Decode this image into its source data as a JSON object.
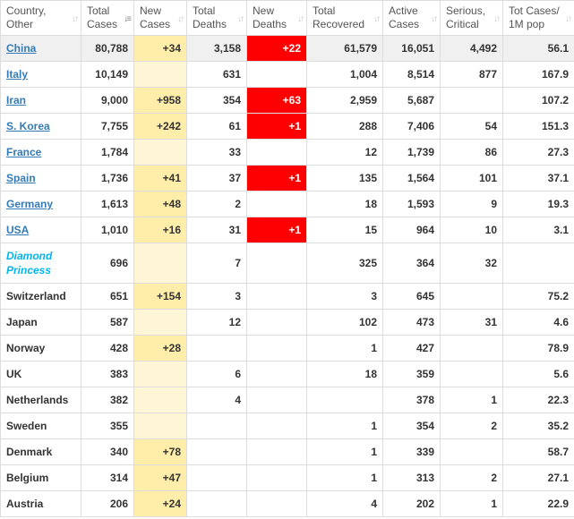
{
  "headers": [
    "Country, Other",
    "Total Cases",
    "New Cases",
    "Total Deaths",
    "New Deaths",
    "Total Recovered",
    "Active Cases",
    "Serious, Critical",
    "Tot Cases/ 1M pop"
  ],
  "rows": [
    {
      "country": "China",
      "link": true,
      "total_cases": "80,788",
      "new_cases": "+34",
      "total_deaths": "3,158",
      "new_deaths": "+22",
      "total_recovered": "61,579",
      "active_cases": "16,051",
      "serious": "4,492",
      "per_million": "56.1"
    },
    {
      "country": "Italy",
      "link": true,
      "total_cases": "10,149",
      "new_cases": "",
      "total_deaths": "631",
      "new_deaths": "",
      "total_recovered": "1,004",
      "active_cases": "8,514",
      "serious": "877",
      "per_million": "167.9"
    },
    {
      "country": "Iran",
      "link": true,
      "total_cases": "9,000",
      "new_cases": "+958",
      "total_deaths": "354",
      "new_deaths": "+63",
      "total_recovered": "2,959",
      "active_cases": "5,687",
      "serious": "",
      "per_million": "107.2"
    },
    {
      "country": "S. Korea",
      "link": true,
      "total_cases": "7,755",
      "new_cases": "+242",
      "total_deaths": "61",
      "new_deaths": "+1",
      "total_recovered": "288",
      "active_cases": "7,406",
      "serious": "54",
      "per_million": "151.3"
    },
    {
      "country": "France",
      "link": true,
      "total_cases": "1,784",
      "new_cases": "",
      "total_deaths": "33",
      "new_deaths": "",
      "total_recovered": "12",
      "active_cases": "1,739",
      "serious": "86",
      "per_million": "27.3"
    },
    {
      "country": "Spain",
      "link": true,
      "total_cases": "1,736",
      "new_cases": "+41",
      "total_deaths": "37",
      "new_deaths": "+1",
      "total_recovered": "135",
      "active_cases": "1,564",
      "serious": "101",
      "per_million": "37.1"
    },
    {
      "country": "Germany",
      "link": true,
      "total_cases": "1,613",
      "new_cases": "+48",
      "total_deaths": "2",
      "new_deaths": "",
      "total_recovered": "18",
      "active_cases": "1,593",
      "serious": "9",
      "per_million": "19.3"
    },
    {
      "country": "USA",
      "link": true,
      "total_cases": "1,010",
      "new_cases": "+16",
      "total_deaths": "31",
      "new_deaths": "+1",
      "total_recovered": "15",
      "active_cases": "964",
      "serious": "10",
      "per_million": "3.1"
    },
    {
      "country": "Diamond Princess",
      "ship": true,
      "total_cases": "696",
      "new_cases": "",
      "total_deaths": "7",
      "new_deaths": "",
      "total_recovered": "325",
      "active_cases": "364",
      "serious": "32",
      "per_million": ""
    },
    {
      "country": "Switzerland",
      "total_cases": "651",
      "new_cases": "+154",
      "total_deaths": "3",
      "new_deaths": "",
      "total_recovered": "3",
      "active_cases": "645",
      "serious": "",
      "per_million": "75.2"
    },
    {
      "country": "Japan",
      "total_cases": "587",
      "new_cases": "",
      "total_deaths": "12",
      "new_deaths": "",
      "total_recovered": "102",
      "active_cases": "473",
      "serious": "31",
      "per_million": "4.6"
    },
    {
      "country": "Norway",
      "total_cases": "428",
      "new_cases": "+28",
      "total_deaths": "",
      "new_deaths": "",
      "total_recovered": "1",
      "active_cases": "427",
      "serious": "",
      "per_million": "78.9"
    },
    {
      "country": "UK",
      "total_cases": "383",
      "new_cases": "",
      "total_deaths": "6",
      "new_deaths": "",
      "total_recovered": "18",
      "active_cases": "359",
      "serious": "",
      "per_million": "5.6"
    },
    {
      "country": "Netherlands",
      "total_cases": "382",
      "new_cases": "",
      "total_deaths": "4",
      "new_deaths": "",
      "total_recovered": "",
      "active_cases": "378",
      "serious": "1",
      "per_million": "22.3"
    },
    {
      "country": "Sweden",
      "total_cases": "355",
      "new_cases": "",
      "total_deaths": "",
      "new_deaths": "",
      "total_recovered": "1",
      "active_cases": "354",
      "serious": "2",
      "per_million": "35.2"
    },
    {
      "country": "Denmark",
      "total_cases": "340",
      "new_cases": "+78",
      "total_deaths": "",
      "new_deaths": "",
      "total_recovered": "1",
      "active_cases": "339",
      "serious": "",
      "per_million": "58.7"
    },
    {
      "country": "Belgium",
      "total_cases": "314",
      "new_cases": "+47",
      "total_deaths": "",
      "new_deaths": "",
      "total_recovered": "1",
      "active_cases": "313",
      "serious": "2",
      "per_million": "27.1"
    },
    {
      "country": "Austria",
      "total_cases": "206",
      "new_cases": "+24",
      "total_deaths": "",
      "new_deaths": "",
      "total_recovered": "4",
      "active_cases": "202",
      "serious": "1",
      "per_million": "22.9"
    }
  ],
  "colors": {
    "new_cases_fill": "#ffeeaa",
    "new_deaths_fill": "#ff0000",
    "link": "#337ab7",
    "ship": "#00b5f0",
    "highlight_row": "#f0f0f0"
  },
  "icons": {
    "sort": "sort-arrows-icon",
    "sort_active": "sort-desc-icon"
  }
}
